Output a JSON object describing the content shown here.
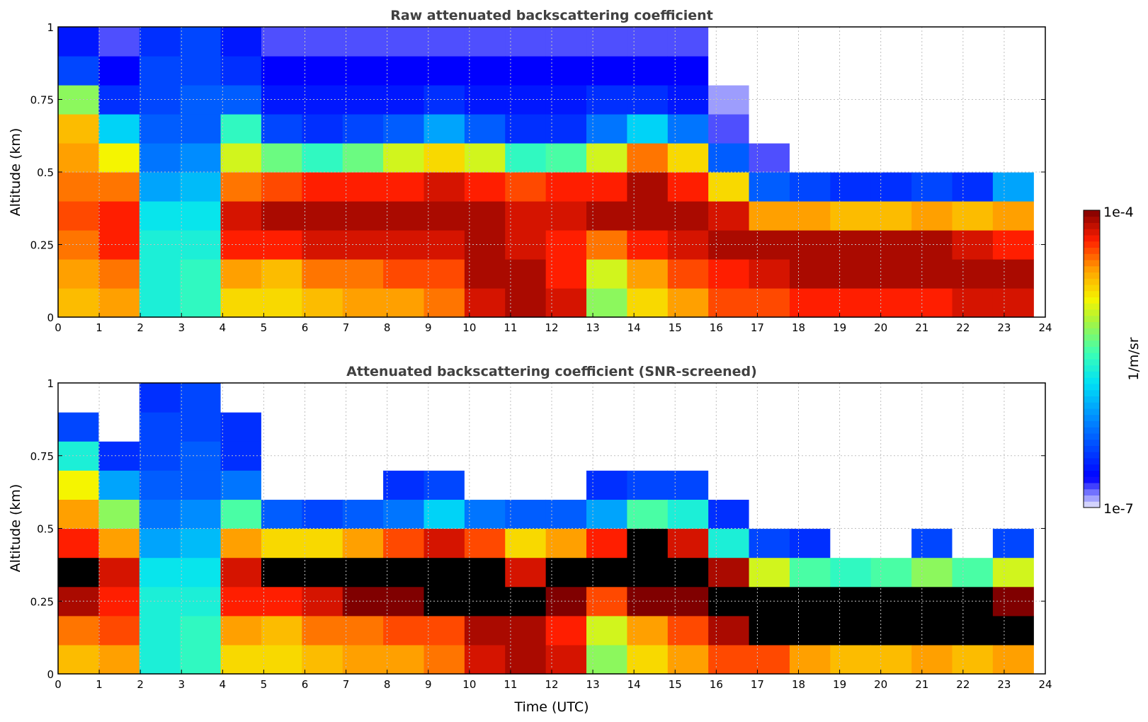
{
  "chart_data": [
    {
      "type": "heatmap",
      "title": "Raw attenuated backscattering coefficient",
      "xlabel": "",
      "ylabel": "Altitude (km)",
      "xlim": [
        0,
        24
      ],
      "ylim": [
        0,
        1
      ],
      "xticks": [
        "0",
        "1",
        "2",
        "3",
        "4",
        "5",
        "6",
        "7",
        "8",
        "9",
        "10",
        "11",
        "12",
        "13",
        "14",
        "15",
        "16",
        "17",
        "18",
        "19",
        "20",
        "21",
        "22",
        "23",
        "24"
      ],
      "yticks": [
        "0",
        "0.25",
        "0.5",
        "0.75",
        "1"
      ],
      "grid": true,
      "value_scale": "log10 (1/m/sr)",
      "time_bins_hours": [
        0,
        1,
        2,
        3,
        4,
        5,
        6,
        7,
        8,
        9,
        10,
        11,
        12,
        13,
        14,
        15,
        16,
        17,
        18,
        19,
        20,
        21,
        22,
        23
      ],
      "altitude_bins_km": [
        0.05,
        0.15,
        0.25,
        0.35,
        0.45,
        0.55,
        0.65,
        0.75,
        0.85,
        0.95
      ],
      "values_log10": [
        [
          -4.7,
          -4.6,
          -4.5,
          -4.4,
          -4.5,
          -4.6,
          -4.7,
          -5.2,
          -6.4,
          -6.6
        ],
        [
          -4.6,
          -4.5,
          -4.3,
          -4.3,
          -4.5,
          -4.9,
          -5.8,
          -6.5,
          -6.7,
          -6.8
        ],
        [
          -5.6,
          -5.6,
          -5.6,
          -5.7,
          -6.0,
          -6.2,
          -6.3,
          -6.4,
          -6.4,
          -6.5
        ],
        [
          -5.5,
          -5.5,
          -5.6,
          -5.7,
          -5.9,
          -6.1,
          -6.3,
          -6.3,
          -6.4,
          -6.4
        ],
        [
          -4.8,
          -4.6,
          -4.3,
          -4.2,
          -4.5,
          -5.0,
          -5.5,
          -6.3,
          -6.5,
          -6.6
        ],
        [
          -4.8,
          -4.7,
          -4.3,
          -4.1,
          -4.4,
          -5.3,
          -6.4,
          -6.6,
          -6.7,
          -6.8
        ],
        [
          -4.7,
          -4.5,
          -4.2,
          -4.1,
          -4.3,
          -5.5,
          -6.5,
          -6.6,
          -6.7,
          -6.8
        ],
        [
          -4.6,
          -4.5,
          -4.2,
          -4.1,
          -4.3,
          -5.3,
          -6.4,
          -6.6,
          -6.7,
          -6.8
        ],
        [
          -4.6,
          -4.4,
          -4.2,
          -4.1,
          -4.3,
          -5.0,
          -6.3,
          -6.6,
          -6.7,
          -6.8
        ],
        [
          -4.5,
          -4.4,
          -4.2,
          -4.1,
          -4.2,
          -4.8,
          -6.0,
          -6.5,
          -6.7,
          -6.8
        ],
        [
          -4.2,
          -4.1,
          -4.1,
          -4.1,
          -4.3,
          -5.0,
          -6.3,
          -6.6,
          -6.7,
          -6.8
        ],
        [
          -4.1,
          -4.1,
          -4.2,
          -4.2,
          -4.4,
          -5.5,
          -6.5,
          -6.6,
          -6.7,
          -6.8
        ],
        [
          -4.2,
          -4.3,
          -4.3,
          -4.2,
          -4.3,
          -5.4,
          -6.5,
          -6.6,
          -6.7,
          -6.8
        ],
        [
          -5.2,
          -5.0,
          -4.5,
          -4.1,
          -4.3,
          -5.0,
          -6.2,
          -6.5,
          -6.7,
          -6.8
        ],
        [
          -4.8,
          -4.6,
          -4.3,
          -4.1,
          -4.1,
          -4.5,
          -5.8,
          -6.5,
          -6.7,
          -6.8
        ],
        [
          -4.6,
          -4.4,
          -4.2,
          -4.1,
          -4.3,
          -4.8,
          -6.2,
          -6.6,
          -6.7,
          -6.8
        ],
        [
          -4.4,
          -4.3,
          -4.1,
          -4.2,
          -4.8,
          -6.3,
          -6.8,
          -6.9,
          null,
          null
        ],
        [
          -4.4,
          -4.2,
          -4.1,
          -4.6,
          -6.3,
          -6.8,
          null,
          null,
          null,
          null
        ],
        [
          -4.3,
          -4.1,
          -4.1,
          -4.6,
          -6.4,
          null,
          null,
          null,
          null,
          null
        ],
        [
          -4.3,
          -4.1,
          -4.1,
          -4.7,
          -6.5,
          null,
          null,
          null,
          null,
          null
        ],
        [
          -4.3,
          -4.1,
          -4.1,
          -4.7,
          -6.5,
          null,
          null,
          null,
          null,
          null
        ],
        [
          -4.3,
          -4.1,
          -4.1,
          -4.6,
          -6.4,
          null,
          null,
          null,
          null,
          null
        ],
        [
          -4.2,
          -4.1,
          -4.2,
          -4.7,
          -6.5,
          null,
          null,
          null,
          null,
          null
        ],
        [
          -4.2,
          -4.1,
          -4.3,
          -4.6,
          -6.0,
          null,
          null,
          null,
          null,
          null
        ]
      ]
    },
    {
      "type": "heatmap",
      "title": "Attenuated backscattering coefficient (SNR-screened)",
      "xlabel": "Time (UTC)",
      "ylabel": "Altitude (km)",
      "xlim": [
        0,
        24
      ],
      "ylim": [
        0,
        1
      ],
      "xticks": [
        "0",
        "1",
        "2",
        "3",
        "4",
        "5",
        "6",
        "7",
        "8",
        "9",
        "10",
        "11",
        "12",
        "13",
        "14",
        "15",
        "16",
        "17",
        "18",
        "19",
        "20",
        "21",
        "22",
        "23",
        "24"
      ],
      "yticks": [
        "0",
        "0.25",
        "0.5",
        "0.75",
        "1"
      ],
      "grid": true,
      "value_scale": "log10 (1/m/sr); values above 1e-4 shown black",
      "time_bins_hours": [
        0,
        1,
        2,
        3,
        4,
        5,
        6,
        7,
        8,
        9,
        10,
        11,
        12,
        13,
        14,
        15,
        16,
        17,
        18,
        19,
        20,
        21,
        22,
        23
      ],
      "altitude_bins_km": [
        0.05,
        0.15,
        0.25,
        0.35,
        0.45,
        0.55,
        0.65,
        0.75,
        0.85,
        0.95
      ],
      "values_log10": [
        [
          -4.7,
          -4.5,
          -4.1,
          -3.9,
          -4.3,
          -4.6,
          -4.9,
          -5.6,
          -6.4,
          null
        ],
        [
          -4.6,
          -4.4,
          -4.3,
          -4.2,
          -4.6,
          -5.2,
          -6.0,
          -6.5,
          null,
          null
        ],
        [
          -5.6,
          -5.6,
          -5.6,
          -5.7,
          -6.0,
          -6.2,
          -6.3,
          -6.4,
          -6.4,
          -6.5
        ],
        [
          -5.5,
          -5.5,
          -5.6,
          -5.7,
          -5.9,
          -6.1,
          -6.3,
          -6.3,
          -6.4,
          -6.4
        ],
        [
          -4.8,
          -4.6,
          -4.3,
          -4.2,
          -4.6,
          -5.4,
          -6.2,
          -6.5,
          -6.5,
          null
        ],
        [
          -4.8,
          -4.7,
          -4.3,
          -3.9,
          -4.8,
          -6.3,
          null,
          null,
          null,
          null
        ],
        [
          -4.7,
          -4.5,
          -4.2,
          -3.9,
          -4.8,
          -6.4,
          null,
          null,
          null,
          null
        ],
        [
          -4.6,
          -4.5,
          -4.0,
          -3.9,
          -4.6,
          -6.3,
          null,
          null,
          null,
          null
        ],
        [
          -4.6,
          -4.4,
          -4.0,
          -3.9,
          -4.4,
          -6.2,
          -6.5,
          null,
          null,
          null
        ],
        [
          -4.5,
          -4.4,
          -3.9,
          -3.9,
          -4.2,
          -5.8,
          -6.4,
          null,
          null,
          null
        ],
        [
          -4.2,
          -4.1,
          -3.9,
          -3.9,
          -4.4,
          -6.2,
          null,
          null,
          null,
          null
        ],
        [
          -4.1,
          -4.1,
          -3.9,
          -4.2,
          -4.8,
          -6.3,
          null,
          null,
          null,
          null
        ],
        [
          -4.2,
          -4.3,
          -4.0,
          -3.9,
          -4.6,
          -6.3,
          null,
          null,
          null,
          null
        ],
        [
          -5.2,
          -5.0,
          -4.4,
          -3.9,
          -4.3,
          -6.0,
          -6.5,
          null,
          null,
          null
        ],
        [
          -4.8,
          -4.6,
          -4.0,
          -3.9,
          -3.9,
          -5.4,
          -6.4,
          null,
          null,
          null
        ],
        [
          -4.6,
          -4.4,
          -4.0,
          -3.9,
          -4.2,
          -5.6,
          -6.4,
          null,
          null,
          null
        ],
        [
          -4.4,
          -4.1,
          -3.9,
          -4.1,
          -5.6,
          -6.5,
          null,
          null,
          null,
          null
        ],
        [
          -4.4,
          -3.9,
          -3.9,
          -5.0,
          -6.4,
          null,
          null,
          null,
          null,
          null
        ],
        [
          -4.6,
          -3.9,
          -3.9,
          -5.4,
          -6.5,
          null,
          null,
          null,
          null,
          null
        ],
        [
          -4.7,
          -3.9,
          -3.9,
          -5.5,
          null,
          null,
          null,
          null,
          null,
          null
        ],
        [
          -4.7,
          -3.9,
          -3.9,
          -5.4,
          null,
          null,
          null,
          null,
          null,
          null
        ],
        [
          -4.6,
          -3.9,
          -3.9,
          -5.2,
          -6.4,
          null,
          null,
          null,
          null,
          null
        ],
        [
          -4.7,
          -3.9,
          -3.9,
          -5.4,
          null,
          null,
          null,
          null,
          null,
          null
        ],
        [
          -4.6,
          -3.9,
          -4.0,
          -5.0,
          -6.4,
          null,
          null,
          null,
          null,
          null
        ]
      ]
    }
  ],
  "colorbar": {
    "max_label": "1e-4",
    "min_label": "1e-7",
    "unit_label": "1/m/sr",
    "range_log10": [
      -7,
      -4
    ]
  },
  "colors": {
    "title": "#404040",
    "grid": "#c0c0c0",
    "over_range": "#000000",
    "no_data": "#ffffff"
  }
}
